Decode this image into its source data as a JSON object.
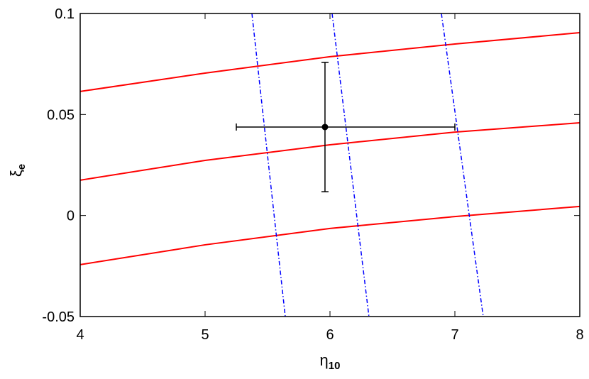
{
  "chart_data": {
    "type": "line",
    "xlabel": {
      "text": "η",
      "sub": "10"
    },
    "ylabel": {
      "text": "ξ",
      "sub": "e"
    },
    "xlim": [
      4,
      8
    ],
    "ylim": [
      -0.05,
      0.1
    ],
    "xticks": [
      4,
      5,
      6,
      7,
      8
    ],
    "yticks": [
      -0.05,
      0,
      0.05,
      0.1
    ],
    "series": [
      {
        "color": "#ff0000",
        "dash": "solid",
        "x": [
          4,
          5,
          6,
          7,
          8
        ],
        "values": [
          0.0614,
          0.0705,
          0.0786,
          0.0849,
          0.0905
        ]
      },
      {
        "color": "#ff0000",
        "dash": "solid",
        "x": [
          4,
          5,
          6,
          7,
          8
        ],
        "values": [
          0.0175,
          0.0273,
          0.035,
          0.0413,
          0.0459
        ]
      },
      {
        "color": "#ff0000",
        "dash": "solid",
        "x": [
          4,
          5,
          6,
          7,
          8
        ],
        "values": [
          -0.0243,
          -0.0145,
          -0.0064,
          -0.0005,
          0.0045
        ]
      },
      {
        "color": "#0000ff",
        "dash": "dashdot",
        "x": [
          5.375,
          5.642
        ],
        "values": [
          0.1,
          -0.05
        ]
      },
      {
        "color": "#0000ff",
        "dash": "dashdot",
        "x": [
          6.017,
          6.312
        ],
        "values": [
          0.1,
          -0.05
        ]
      },
      {
        "color": "#0000ff",
        "dash": "dashdot",
        "x": [
          6.892,
          7.227
        ],
        "values": [
          0.1,
          -0.05
        ]
      }
    ],
    "errorbar": {
      "color": "#000000",
      "x": 5.96,
      "y": 0.0438,
      "xerr": [
        0.71,
        1.04
      ],
      "yerr": [
        0.032,
        0.032
      ]
    }
  }
}
